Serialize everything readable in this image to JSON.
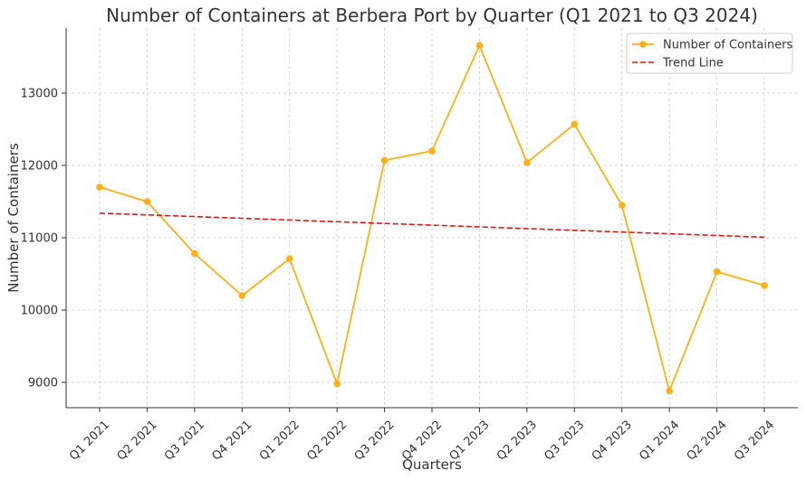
{
  "chart_data": {
    "type": "line",
    "title": "Number of Containers at Berbera Port by Quarter (Q1 2021 to Q3 2024)",
    "xlabel": "Quarters",
    "ylabel": "Number of Containers",
    "categories": [
      "Q1 2021",
      "Q2 2021",
      "Q3 2021",
      "Q4 2021",
      "Q1 2022",
      "Q2 2022",
      "Q3 2022",
      "Q4 2022",
      "Q1 2023",
      "Q2 2023",
      "Q3 2023",
      "Q4 2023",
      "Q1 2024",
      "Q2 2024",
      "Q3 2024"
    ],
    "series": [
      {
        "name": "Number of Containers",
        "color": "#FFB014",
        "style": "solid",
        "marker": "circle",
        "values": [
          11700,
          11500,
          10780,
          10200,
          10710,
          8980,
          12070,
          12200,
          13660,
          12040,
          12570,
          11450,
          8880,
          10530,
          10340
        ]
      },
      {
        "name": "Trend Line",
        "color": "#EE1111",
        "style": "dashed",
        "marker": "none",
        "values": [
          11340,
          11316,
          11292,
          11269,
          11245,
          11221,
          11197,
          11174,
          11150,
          11126,
          11102,
          11079,
          11055,
          11031,
          11007
        ]
      }
    ],
    "ylim": [
      8650,
      13900
    ],
    "yticks": [
      9000,
      10000,
      11000,
      12000,
      13000
    ],
    "grid": true,
    "legend_position": "top-right"
  }
}
